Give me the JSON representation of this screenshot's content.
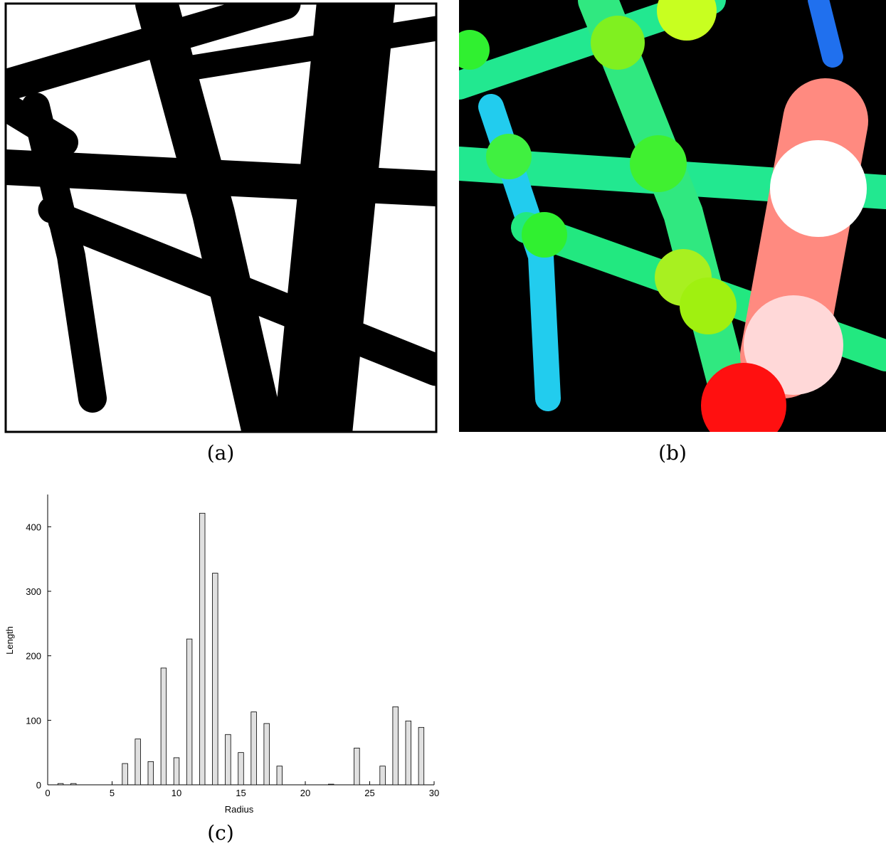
{
  "figure": {
    "captions": [
      "(a)",
      "(b)",
      "(c)"
    ]
  },
  "chart_data": {
    "type": "bar",
    "x_label": "Radius",
    "y_label": "Length",
    "x": [
      1,
      2,
      3,
      4,
      5,
      6,
      7,
      8,
      9,
      10,
      11,
      12,
      13,
      14,
      15,
      16,
      17,
      18,
      19,
      20,
      21,
      22,
      23,
      24,
      25,
      26,
      27,
      28,
      29
    ],
    "values": [
      2,
      2,
      0,
      0,
      0,
      33,
      71,
      36,
      181,
      42,
      226,
      421,
      328,
      78,
      50,
      113,
      95,
      29,
      0,
      0,
      0,
      1,
      0,
      57,
      0,
      29,
      121,
      99,
      89
    ],
    "color": "#e0e0e0",
    "xlim": [
      0,
      30
    ],
    "xticks": [
      0,
      5,
      10,
      15,
      20,
      25,
      30
    ],
    "ylim": [
      0,
      450
    ],
    "yticks": [
      0,
      100,
      200,
      300,
      400
    ],
    "grid": false
  }
}
